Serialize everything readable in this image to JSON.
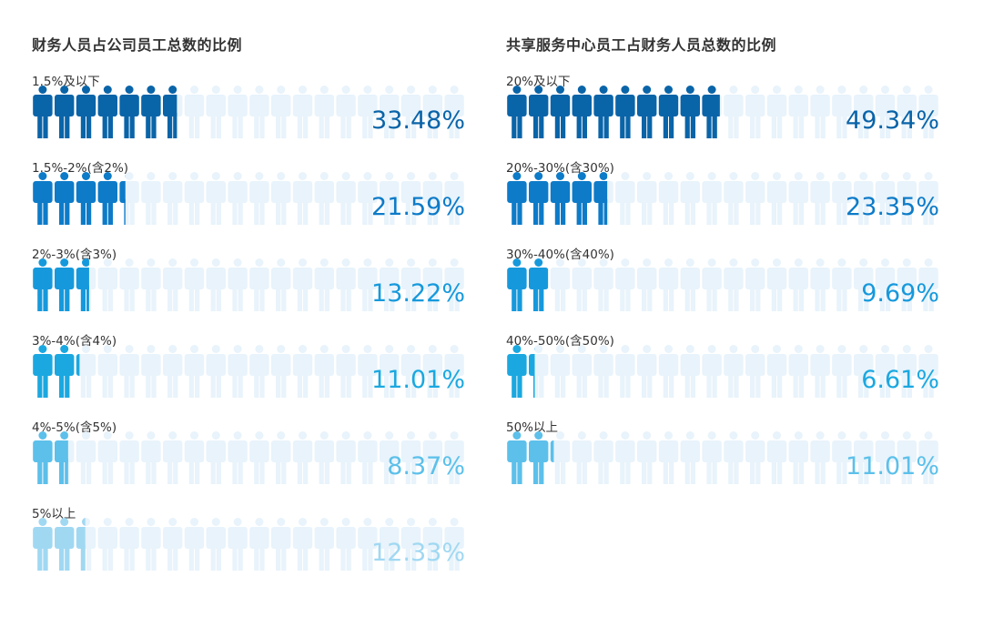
{
  "chart_data": [
    {
      "type": "pictogram-bar",
      "title": "财务人员占公司员工总数的比例",
      "icon": "person-icon",
      "track_color": "#e8f3fb",
      "categories": [
        "1.5%及以下",
        "1.5%-2%(含2%)",
        "2%-3%(含3%)",
        "3%-4%(含4%)",
        "4%-5%(含5%)",
        "5%以上"
      ],
      "values": [
        33.48,
        21.59,
        13.22,
        11.01,
        8.37,
        12.33
      ],
      "value_labels": [
        "33.48%",
        "21.59%",
        "13.22%",
        "11.01%",
        "8.37%",
        "12.33%"
      ],
      "colors": [
        "#0a64a8",
        "#0d7bc8",
        "#1699dc",
        "#1ba8e0",
        "#5cc0ea",
        "#a0d8f2"
      ],
      "xlim": [
        0,
        100
      ]
    },
    {
      "type": "pictogram-bar",
      "title": "共享服务中心员工占财务人员总数的比例",
      "icon": "person-icon",
      "track_color": "#e8f3fb",
      "categories": [
        "20%及以下",
        "20%-30%(含30%)",
        "30%-40%(含40%)",
        "40%-50%(含50%)",
        "50%以上"
      ],
      "values": [
        49.34,
        23.35,
        9.69,
        6.61,
        11.01
      ],
      "value_labels": [
        "49.34%",
        "23.35%",
        "9.69%",
        "6.61%",
        "11.01%"
      ],
      "colors": [
        "#0a64a8",
        "#0d7bc8",
        "#1699dc",
        "#1ba8e0",
        "#5cc0ea"
      ],
      "xlim": [
        0,
        100
      ]
    }
  ]
}
